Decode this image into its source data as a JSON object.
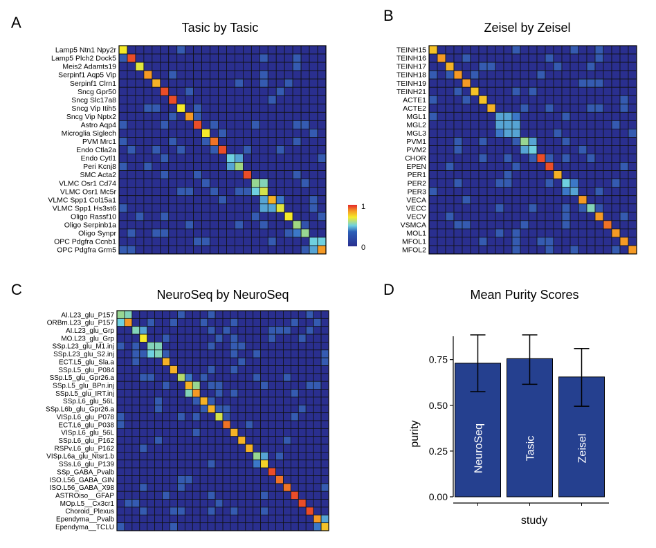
{
  "panels": {
    "a": {
      "letter": "A",
      "title": "Tasic by Tasic"
    },
    "b": {
      "letter": "B",
      "title": "Zeisel by Zeisel"
    },
    "c": {
      "letter": "C",
      "title": "NeuroSeq by NeuroSeq"
    },
    "d": {
      "letter": "D",
      "title": "Mean Purity Scores"
    }
  },
  "colorbar": {
    "max_label": "1",
    "min_label": "0"
  },
  "colors": {
    "heat_low": "#2a2f8f",
    "heat_mid": "#6fd0e0",
    "heat_high_yellow": "#f5ea2a",
    "heat_orange": "#f59a25",
    "heat_red": "#e4262b",
    "bar_fill": "#25408f",
    "bar_stroke": "#000000"
  },
  "chart_data": [
    {
      "type": "heatmap",
      "title": "Tasic by Tasic",
      "rows": [
        "Lamp5 Ntn1 Npy2r",
        "Lamp5 Plch2 Dock5",
        "Meis2 Adamts19",
        "Serpinf1 Aqp5 Vip",
        "Serpinf1 Clrn1",
        "Sncg Gpr50",
        "Sncg Slc17a8",
        "Sncg Vip Itih5",
        "Sncg Vip Nptx2",
        "Astro Aqp4",
        "Microglia Siglech",
        "PVM Mrc1",
        "Endo Ctla2a",
        "Endo Cytl1",
        "Peri Kcnj8",
        "SMC Acta2",
        "VLMC Osr1 Cd74",
        "VLMC Osr1 Mc5r",
        "VLMC Spp1 Col15a1",
        "VLMC Spp1 Hs3st6",
        "Oligo Rassf10",
        "Oligo Serpinb1a",
        "Oligo Synpr",
        "OPC Pdgfra Ccnb1",
        "OPC Pdgfra Grm5"
      ],
      "diagonal": [
        0.75,
        0.95,
        0.72,
        0.85,
        0.82,
        0.95,
        0.95,
        0.75,
        0.85,
        0.95,
        0.75,
        0.9,
        0.95,
        0.5,
        0.62,
        0.95,
        0.6,
        0.7,
        0.82,
        0.72,
        0.75,
        0.62,
        0.6,
        0.5,
        0.85
      ],
      "offdiag": [
        [
          13,
          14,
          0.45
        ],
        [
          14,
          13,
          0.45
        ],
        [
          16,
          17,
          0.55
        ],
        [
          17,
          16,
          0.5
        ],
        [
          18,
          17,
          0.45
        ],
        [
          19,
          17,
          0.45
        ],
        [
          18,
          19,
          0.4
        ],
        [
          19,
          18,
          0.45
        ],
        [
          21,
          22,
          0.35
        ],
        [
          22,
          21,
          0.4
        ],
        [
          23,
          24,
          0.5
        ],
        [
          24,
          23,
          0.45
        ],
        [
          20,
          21,
          0.25
        ],
        [
          7,
          8,
          0.25
        ]
      ],
      "color_range": [
        0,
        1
      ]
    },
    {
      "type": "heatmap",
      "title": "Zeisel by Zeisel",
      "rows": [
        "TEINH15",
        "TEINH16",
        "TEINH17",
        "TEINH18",
        "TEINH19",
        "TEINH21",
        "ACTE1",
        "ACTE2",
        "MGL1",
        "MGL2",
        "MGL3",
        "PVM1",
        "PVM2",
        "CHOR",
        "EPEN",
        "PER1",
        "PER2",
        "PER3",
        "VECA",
        "VECC",
        "VECV",
        "VSMCA",
        "MOL1",
        "MFOL1",
        "MFOL2"
      ],
      "diagonal": [
        0.8,
        0.85,
        0.82,
        0.85,
        0.85,
        0.8,
        0.8,
        0.82,
        0.45,
        0.45,
        0.45,
        0.6,
        0.5,
        0.95,
        0.95,
        0.82,
        0.5,
        0.45,
        0.85,
        0.55,
        0.85,
        0.9,
        0.85,
        0.85,
        0.85
      ],
      "offdiag": [
        [
          8,
          9,
          0.45
        ],
        [
          8,
          10,
          0.4
        ],
        [
          9,
          8,
          0.45
        ],
        [
          9,
          10,
          0.45
        ],
        [
          10,
          8,
          0.4
        ],
        [
          10,
          9,
          0.45
        ],
        [
          11,
          12,
          0.45
        ],
        [
          12,
          11,
          0.45
        ],
        [
          16,
          17,
          0.4
        ],
        [
          17,
          16,
          0.4
        ],
        [
          15,
          16,
          0.3
        ],
        [
          19,
          20,
          0.35
        ],
        [
          20,
          19,
          0.3
        ],
        [
          23,
          24,
          0.3
        ]
      ],
      "color_range": [
        0,
        1
      ]
    },
    {
      "type": "heatmap",
      "title": "NeuroSeq by NeuroSeq",
      "rows": [
        "AI.L23_glu_P157",
        "ORBm.L23_glu_P157",
        "AI.L23_glu_Grp",
        "MO.L23_glu_Grp",
        "SSp.L23_glu_M1.inj",
        "SSp.L23_glu_S2.inj",
        "ECT.L5_glu_Sla.a",
        "SSp.L5_glu_P084",
        "SSp.L5_glu_Gpr26.a",
        "SSp.L5_glu_BPn.inj",
        "SSp.L5_glu_IRT.inj",
        "SSp.L6_glu_56L",
        "SSp.L6b_glu_Gpr26.a",
        "VISp.L6_glu_P078",
        "ECT.L6_glu_P038",
        "VISp.L6_glu_56L",
        "SSp.L6_glu_P162",
        "RSPv.L6_glu_P162",
        "VISp.L6a_glu_Ntsr1.b",
        "SSs.L6_glu_P139",
        "SSp_GABA_Pvalb",
        "ISO.L56_GABA_GIN",
        "ISO.L56_GABA_X98",
        "ASTROiso__GFAP",
        "MOp.L5__Cx3cr1",
        "Choroid_Plexus",
        "Ependyma__Pvalb",
        "Ependyma__TCLU"
      ],
      "diagonal": [
        0.6,
        0.85,
        0.55,
        0.75,
        0.55,
        0.55,
        0.82,
        0.82,
        0.65,
        0.82,
        0.85,
        0.82,
        0.82,
        0.7,
        0.9,
        0.82,
        0.82,
        0.82,
        0.6,
        0.78,
        0.95,
        0.9,
        0.9,
        0.95,
        0.95,
        0.95,
        0.85,
        0.8
      ],
      "offdiag": [
        [
          0,
          1,
          0.55
        ],
        [
          1,
          0,
          0.5
        ],
        [
          2,
          3,
          0.45
        ],
        [
          4,
          5,
          0.55
        ],
        [
          5,
          4,
          0.5
        ],
        [
          9,
          10,
          0.6
        ],
        [
          10,
          9,
          0.55
        ],
        [
          8,
          9,
          0.4
        ],
        [
          13,
          14,
          0.35
        ],
        [
          18,
          19,
          0.45
        ],
        [
          19,
          18,
          0.4
        ],
        [
          26,
          27,
          0.45
        ],
        [
          27,
          26,
          0.4
        ]
      ],
      "color_range": [
        0,
        1
      ]
    },
    {
      "type": "bar",
      "title": "Mean Purity Scores",
      "xlabel": "study",
      "ylabel": "purity",
      "categories": [
        "NeuroSeq",
        "Tasic",
        "Zeisel"
      ],
      "values": [
        0.73,
        0.755,
        0.655
      ],
      "error_low": [
        0.575,
        0.615,
        0.495
      ],
      "error_high": [
        0.885,
        0.885,
        0.81
      ],
      "ylim": [
        0,
        0.9
      ],
      "yticks": [
        "0.00",
        "0.25",
        "0.50",
        "0.75"
      ],
      "yticks_values": [
        0,
        0.25,
        0.5,
        0.75
      ]
    }
  ]
}
